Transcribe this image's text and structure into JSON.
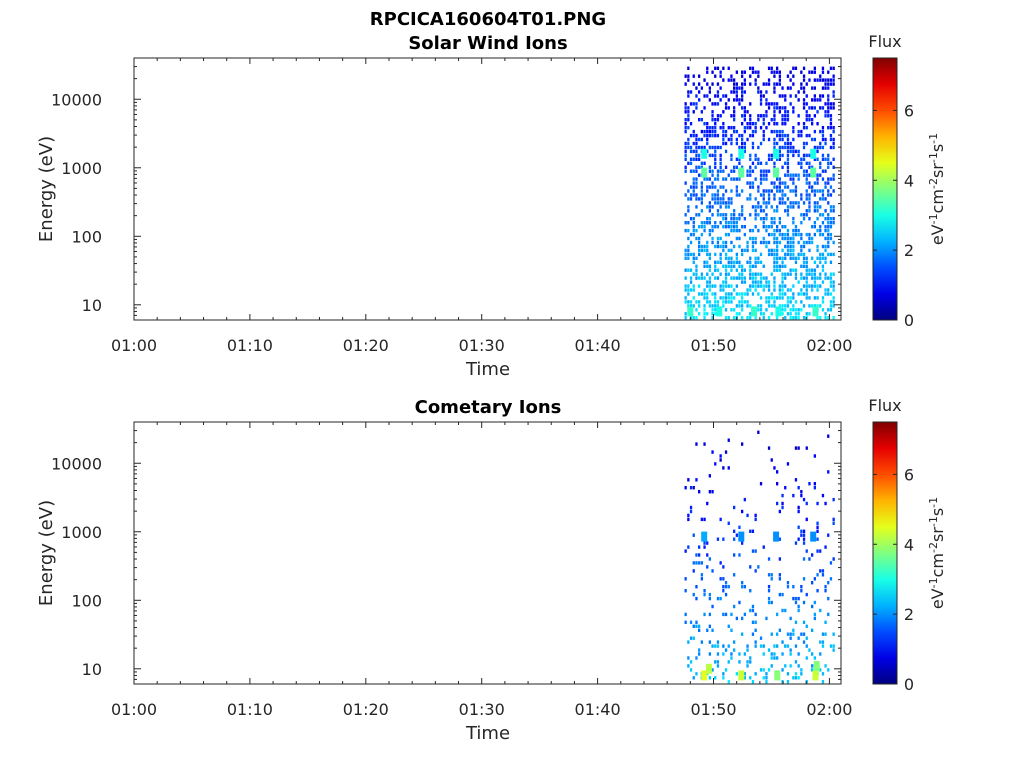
{
  "chart_data": [
    {
      "type": "heatmap",
      "title_main": "RPCICA160604T01.PNG",
      "title": "Solar Wind Ions",
      "xlabel": "Time",
      "ylabel": "Energy (eV)",
      "x_ticks": [
        "01:00",
        "01:10",
        "01:20",
        "01:30",
        "01:40",
        "01:50",
        "02:00"
      ],
      "x_range_min": [
        0,
        61
      ],
      "y_scale": "log",
      "y_ticks": [
        {
          "v": 10,
          "label": "10"
        },
        {
          "v": 100,
          "label": "100"
        },
        {
          "v": 1000,
          "label": "1000"
        },
        {
          "v": 10000,
          "label": "10000"
        }
      ],
      "y_range": [
        6,
        40000
      ],
      "data_start_min": 47.5,
      "data_end_min": 60.5,
      "colorbar": {
        "label": "Flux",
        "units": "eV-1cm-2sr-1s-1",
        "range": [
          0,
          7.5
        ],
        "ticks": [
          0,
          2,
          4,
          6
        ]
      },
      "density": 0.55,
      "hot_spots": [
        {
          "t": 49.2,
          "e": 850,
          "v": 3.5
        },
        {
          "t": 52.4,
          "e": 850,
          "v": 3.5
        },
        {
          "t": 55.4,
          "e": 850,
          "v": 3.5
        },
        {
          "t": 58.6,
          "e": 850,
          "v": 3.5
        },
        {
          "t": 49.2,
          "e": 1600,
          "v": 3.0
        },
        {
          "t": 52.4,
          "e": 1600,
          "v": 3.0
        },
        {
          "t": 55.4,
          "e": 1600,
          "v": 3.0
        },
        {
          "t": 58.6,
          "e": 1600,
          "v": 3.0
        },
        {
          "t": 48.0,
          "e": 8,
          "v": 3.2
        },
        {
          "t": 50.5,
          "e": 8,
          "v": 3.0
        },
        {
          "t": 53.5,
          "e": 8,
          "v": 3.2
        },
        {
          "t": 55.6,
          "e": 8,
          "v": 3.0
        },
        {
          "t": 58.8,
          "e": 8,
          "v": 3.2
        }
      ]
    },
    {
      "type": "heatmap",
      "title": "Cometary Ions",
      "xlabel": "Time",
      "ylabel": "Energy (eV)",
      "x_ticks": [
        "01:00",
        "01:10",
        "01:20",
        "01:30",
        "01:40",
        "01:50",
        "02:00"
      ],
      "x_range_min": [
        0,
        61
      ],
      "y_scale": "log",
      "y_ticks": [
        {
          "v": 10,
          "label": "10"
        },
        {
          "v": 100,
          "label": "100"
        },
        {
          "v": 1000,
          "label": "1000"
        },
        {
          "v": 10000,
          "label": "10000"
        }
      ],
      "y_range": [
        6,
        40000
      ],
      "data_start_min": 47.5,
      "data_end_min": 60.5,
      "colorbar": {
        "label": "Flux",
        "units": "eV-1cm-2sr-1s-1",
        "range": [
          0,
          7.5
        ],
        "ticks": [
          0,
          2,
          4,
          6
        ]
      },
      "density": 0.22,
      "hot_spots": [
        {
          "t": 49.2,
          "e": 850,
          "v": 2.2
        },
        {
          "t": 52.4,
          "e": 850,
          "v": 2.0
        },
        {
          "t": 55.4,
          "e": 850,
          "v": 2.0
        },
        {
          "t": 58.6,
          "e": 850,
          "v": 2.0
        },
        {
          "t": 49.2,
          "e": 8,
          "v": 4.5
        },
        {
          "t": 49.6,
          "e": 10,
          "v": 4.2
        },
        {
          "t": 52.4,
          "e": 8,
          "v": 4.3
        },
        {
          "t": 55.5,
          "e": 8,
          "v": 3.8
        },
        {
          "t": 58.8,
          "e": 8,
          "v": 4.3
        },
        {
          "t": 58.9,
          "e": 11,
          "v": 3.8
        }
      ]
    }
  ]
}
